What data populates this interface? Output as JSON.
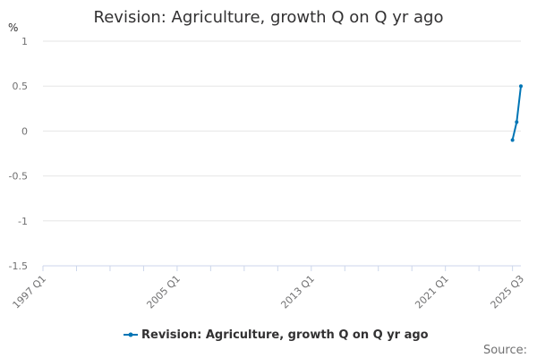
{
  "chart_data": {
    "type": "line",
    "title": "Revision: Agriculture, growth Q on Q yr ago",
    "ylabel": "%",
    "xlabel": "",
    "ylim": [
      -1.5,
      1
    ],
    "y_ticks": [
      "1",
      "0.5",
      "0",
      "-0.5",
      "-1",
      "-1.5"
    ],
    "y_tick_values": [
      1,
      0.5,
      0,
      -0.5,
      -1,
      -1.5
    ],
    "x_ticks": [
      "1997 Q1",
      "2005 Q1",
      "2013 Q1",
      "2021 Q1",
      "2025 Q3"
    ],
    "x_range": [
      "1997 Q1",
      "2025 Q3"
    ],
    "grid": true,
    "legend_position": "bottom",
    "series": [
      {
        "name": "Revision: Agriculture, growth Q on Q yr ago",
        "color": "#0075b5",
        "x": [
          "2025 Q1",
          "2025 Q2",
          "2025 Q3"
        ],
        "y": [
          -0.1,
          0.1,
          0.5
        ]
      }
    ]
  },
  "footer": {
    "source_label": "Source:"
  }
}
